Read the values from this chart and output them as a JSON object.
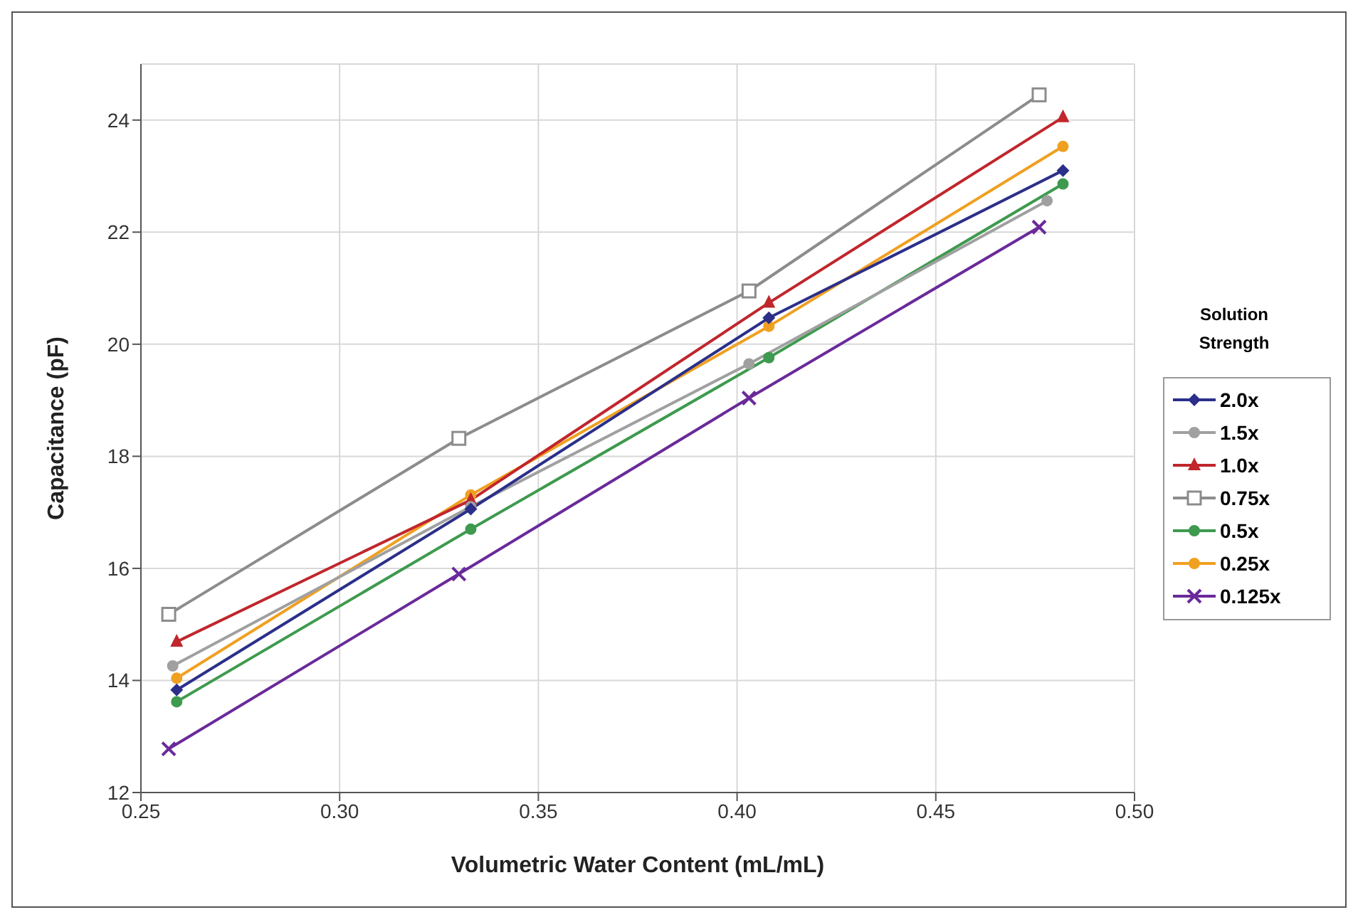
{
  "chart_data": {
    "type": "line",
    "xlabel": "Volumetric Water Content (mL/mL)",
    "ylabel": "Capacitance (pF)",
    "legend_title": "Solution Strength",
    "xlim": [
      0.25,
      0.5
    ],
    "xticks": [
      {
        "value": 0.25,
        "label": "0.25"
      },
      {
        "value": 0.3,
        "label": "0.30"
      },
      {
        "value": 0.35,
        "label": "0.35"
      },
      {
        "value": 0.4,
        "label": "0.40"
      },
      {
        "value": 0.45,
        "label": "0.45"
      },
      {
        "value": 0.5,
        "label": "0.50"
      }
    ],
    "ylim": [
      12,
      25
    ],
    "yticks": [
      12,
      14,
      16,
      18,
      20,
      22,
      24
    ],
    "grid": true,
    "legend": "right",
    "line_style": "solid",
    "series": [
      {
        "name": "2.0x",
        "color": "#2b2f8a",
        "marker": "diamond",
        "x": [
          0.259,
          0.333,
          0.408,
          0.482
        ],
        "values": [
          13.83,
          17.06,
          20.47,
          23.1
        ]
      },
      {
        "name": "1.5x",
        "color": "#a0a0a0",
        "marker": "circle",
        "x": [
          0.258,
          0.333,
          0.403,
          0.478
        ],
        "values": [
          14.26,
          17.1,
          19.65,
          22.56
        ]
      },
      {
        "name": "1.0x",
        "color": "#c0262c",
        "marker": "triangle",
        "x": [
          0.259,
          0.333,
          0.408,
          0.482
        ],
        "values": [
          14.69,
          17.22,
          20.74,
          24.05
        ]
      },
      {
        "name": "0.75x",
        "color": "#8c8c8c",
        "marker": "square",
        "x": [
          0.257,
          0.33,
          0.403,
          0.476
        ],
        "values": [
          15.18,
          18.32,
          20.95,
          24.45
        ]
      },
      {
        "name": "0.5x",
        "color": "#3e9a4e",
        "marker": "circle",
        "x": [
          0.259,
          0.333,
          0.408,
          0.482
        ],
        "values": [
          13.62,
          16.7,
          19.76,
          22.86
        ]
      },
      {
        "name": "0.25x",
        "color": "#f0a020",
        "marker": "circle",
        "x": [
          0.259,
          0.333,
          0.408,
          0.482
        ],
        "values": [
          14.04,
          17.31,
          20.32,
          23.53
        ]
      },
      {
        "name": "0.125x",
        "color": "#6a2a9a",
        "marker": "cross",
        "x": [
          0.257,
          0.33,
          0.403,
          0.476
        ],
        "values": [
          12.78,
          15.9,
          19.04,
          22.09
        ]
      }
    ]
  }
}
